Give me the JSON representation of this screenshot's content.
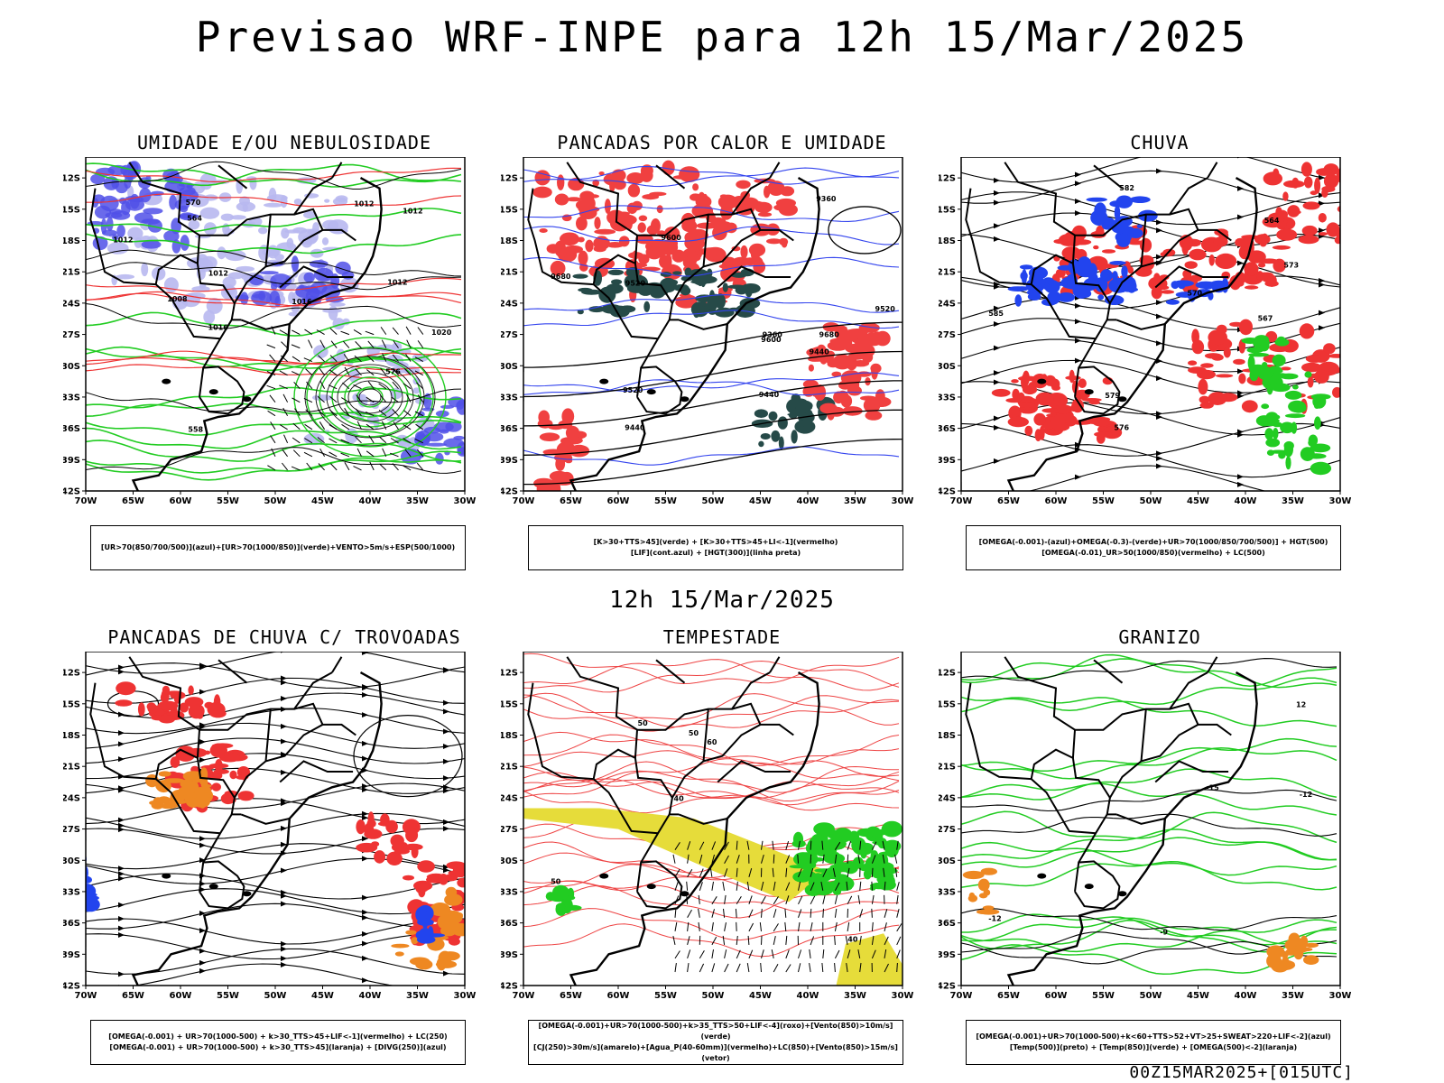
{
  "header": {
    "title": "Previsao WRF-INPE  para 12h 15/Mar/2025",
    "subtitle": "12h 15/Mar/2025",
    "footer": "00Z15MAR2025+[015UTC]"
  },
  "axes": {
    "lat_labels": [
      "12S",
      "15S",
      "18S",
      "21S",
      "24S",
      "27S",
      "30S",
      "33S",
      "36S",
      "39S",
      "42S"
    ],
    "lon_labels": [
      "70W",
      "65W",
      "60W",
      "55W",
      "50W",
      "45W",
      "40W",
      "35W",
      "30W"
    ]
  },
  "panels": [
    {
      "title": "UMIDADE E/OU NEBULOSIDADE",
      "legend": [
        "[UR>70(850/700/500)](azul)+[UR>70(1000/850)](verde)+VENTO>5m/s+ESP(500/1000)"
      ],
      "contour_labels": [
        "1012",
        "1012",
        "1012",
        "1016",
        "1016",
        "1012",
        "1008",
        "1012",
        "1020",
        "576",
        "570",
        "564",
        "558"
      ],
      "colors": {
        "blue_dark": "#5050e8",
        "blue_light": "#b8b8f0",
        "green": "#22cc22",
        "red": "#ee3333"
      }
    },
    {
      "title": "PANCADAS POR CALOR E UMIDADE",
      "legend": [
        "[K>30+TTS>45](verde) + [K>30+TTS>45+LI<-1](vermelho)",
        "[LIF](cont.azul) + [HGT(300)](linha preta)"
      ],
      "contour_labels": [
        "9680",
        "9600",
        "9680",
        "9600",
        "9520",
        "9440",
        "9520",
        "9440",
        "9360",
        "9520",
        "9440",
        "9360"
      ],
      "colors": {
        "red": "#f04040",
        "teal": "#264a48",
        "blue": "#3344ee"
      }
    },
    {
      "title": "CHUVA",
      "legend": [
        "[OMEGA(-0.001)-(azul)+OMEGA(-0.3)-(verde)+UR>70(1000/850/700/500)] + HGT(500)",
        "[OMEGA(-0.01)_UR>50(1000/850)(vermelho) + LC(500)"
      ],
      "contour_labels": [
        "585",
        "582",
        "579",
        "576",
        "573",
        "570",
        "567",
        "564"
      ],
      "colors": {
        "red": "#ee3333",
        "blue": "#2244ee",
        "green": "#22cc22"
      }
    },
    {
      "title": "PANCADAS DE CHUVA C/ TROVOADAS",
      "legend": [
        "[OMEGA(-0.001) + UR>70(1000-500) + k>30_TTS>45+LIF<-1](vermelho) + LC(250)",
        "[OMEGA(-0.001) + UR>70(1000-500) + k>30_TTS>45](laranja) + [DIVG(250)](azul)"
      ],
      "contour_labels": [],
      "colors": {
        "red": "#ee3333",
        "orange": "#ee8822",
        "blue": "#2244ee"
      }
    },
    {
      "title": "TEMPESTADE",
      "legend": [
        "[OMEGA(-0.001)+UR>70(1000-500)+k>35_TTS>50+LIF<-4](roxo)+[Vento(850)>10m/s](verde)",
        "[CJ(250)>30m/s](amarelo)+[Agua_P(40-60mm)](vermelho)+LC(850)+[Vento(850)>15m/s](vetor)"
      ],
      "contour_labels": [
        "50",
        "40",
        "50",
        "60",
        "50",
        "40"
      ],
      "colors": {
        "red": "#ee4444",
        "yellow": "#e6dc3a",
        "green": "#22cc22"
      }
    },
    {
      "title": "GRANIZO",
      "legend": [
        "[OMEGA(-0.001)+UR>70(1000-500)+k<60+TTS>52+VT>25+SWEAT>220+LIF<-2](azul)",
        "[Temp(500)](preto) + [Temp(850)](verde) + [OMEGA(500)<-2](laranja)"
      ],
      "contour_labels": [
        "-12",
        "-15",
        "-12",
        "-9",
        "12"
      ],
      "colors": {
        "green": "#22cc22",
        "orange": "#ee8822"
      }
    }
  ]
}
